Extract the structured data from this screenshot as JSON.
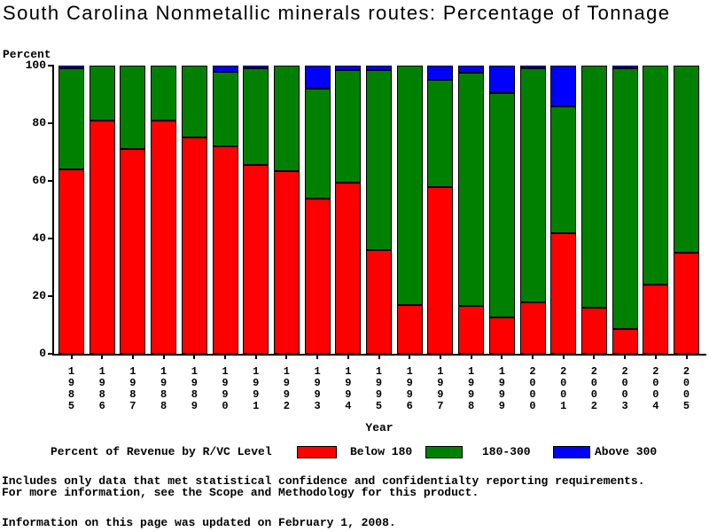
{
  "chart_data": {
    "type": "bar",
    "stacked": true,
    "title": "South Carolina Nonmetallic minerals routes: Percentage of Tonnage",
    "ylabel": "Percent",
    "xlabel": "Year",
    "ylim": [
      0,
      100
    ],
    "yticks": [
      0,
      20,
      40,
      60,
      80,
      100
    ],
    "grid": false,
    "legend_title": "Percent of Revenue by R/VC Level",
    "legend_position": "bottom",
    "bar_outline_color": "#000000",
    "categories": [
      "1985",
      "1986",
      "1987",
      "1988",
      "1989",
      "1990",
      "1991",
      "1992",
      "1993",
      "1994",
      "1995",
      "1996",
      "1997",
      "1998",
      "1999",
      "2000",
      "2001",
      "2002",
      "2003",
      "2004",
      "2005"
    ],
    "series": [
      {
        "name": "Below 180",
        "color": "#ff0000",
        "values": [
          64,
          81,
          71,
          81,
          75,
          72,
          65.5,
          63.5,
          54,
          59.5,
          36,
          17,
          58,
          16.5,
          12.5,
          18,
          42,
          16,
          8.5,
          24,
          35
        ]
      },
      {
        "name": "180-300",
        "color": "#008000",
        "values": [
          35,
          19,
          29,
          19,
          25,
          26,
          33.5,
          36.5,
          38,
          39,
          62.5,
          83,
          37,
          81,
          78,
          81,
          44,
          84,
          90.5,
          76,
          65
        ]
      },
      {
        "name": "Above 300",
        "color": "#0000ff",
        "values": [
          1,
          0,
          0,
          0,
          0,
          2,
          1,
          0,
          8,
          1.5,
          1.5,
          0,
          5,
          2.5,
          9.5,
          1,
          14,
          0,
          1,
          0,
          0
        ]
      }
    ]
  },
  "notes": {
    "line1": "Includes only data that met statistical confidence and confidentialty reporting requirements.",
    "line2": "For more information, see the Scope and Methodology for this product.",
    "line3": "Information on this page was updated on February 1, 2008."
  }
}
